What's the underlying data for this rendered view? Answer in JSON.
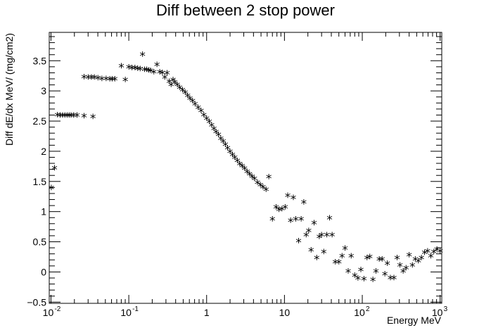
{
  "chart_data": {
    "type": "scatter",
    "title": "Diff between 2 stop power",
    "xlabel": "Energy MeV",
    "ylabel": "Diff dE/dx  MeV/ (mg/cm2)",
    "x_scale": "log",
    "xlim": [
      0.0095,
      1050
    ],
    "ylim": [
      -0.52,
      3.97
    ],
    "grid": false,
    "marker": "*",
    "x_ticks": [
      {
        "value": 0.01,
        "base": "10",
        "exp": "-2"
      },
      {
        "value": 0.1,
        "base": "10",
        "exp": "-1"
      },
      {
        "value": 1,
        "base": "1",
        "exp": ""
      },
      {
        "value": 10,
        "base": "10",
        "exp": ""
      },
      {
        "value": 100,
        "base": "10",
        "exp": "2"
      },
      {
        "value": 1000,
        "base": "10",
        "exp": "3"
      }
    ],
    "y_ticks": [
      {
        "value": -0.5,
        "label": "−0.5"
      },
      {
        "value": 0,
        "label": "0"
      },
      {
        "value": 0.5,
        "label": "0.5"
      },
      {
        "value": 1,
        "label": "1"
      },
      {
        "value": 1.5,
        "label": "1.5"
      },
      {
        "value": 2,
        "label": "2"
      },
      {
        "value": 2.5,
        "label": "2.5"
      },
      {
        "value": 3,
        "label": "3"
      },
      {
        "value": 3.5,
        "label": "3.5"
      }
    ],
    "points": [
      [
        0.0101,
        1.38
      ],
      [
        0.0111,
        1.71
      ],
      [
        0.0121,
        2.59
      ],
      [
        0.0131,
        2.58
      ],
      [
        0.0141,
        2.58
      ],
      [
        0.0151,
        2.58
      ],
      [
        0.0161,
        2.58
      ],
      [
        0.0171,
        2.58
      ],
      [
        0.0181,
        2.58
      ],
      [
        0.0196,
        2.58
      ],
      [
        0.0216,
        2.58
      ],
      [
        0.0266,
        2.57
      ],
      [
        0.0346,
        2.56
      ],
      [
        0.0266,
        3.22
      ],
      [
        0.0301,
        3.21
      ],
      [
        0.0331,
        3.21
      ],
      [
        0.0361,
        3.21
      ],
      [
        0.0401,
        3.2
      ],
      [
        0.0451,
        3.19
      ],
      [
        0.0511,
        3.19
      ],
      [
        0.0571,
        3.18
      ],
      [
        0.0611,
        3.18
      ],
      [
        0.0661,
        3.18
      ],
      [
        0.0801,
        3.4
      ],
      [
        0.0901,
        3.17
      ],
      [
        0.1,
        3.38
      ],
      [
        0.11,
        3.37
      ],
      [
        0.12,
        3.37
      ],
      [
        0.13,
        3.36
      ],
      [
        0.14,
        3.35
      ],
      [
        0.15,
        3.59
      ],
      [
        0.16,
        3.34
      ],
      [
        0.17,
        3.34
      ],
      [
        0.18,
        3.33
      ],
      [
        0.19,
        3.32
      ],
      [
        0.21,
        3.3
      ],
      [
        0.23,
        3.42
      ],
      [
        0.25,
        3.3
      ],
      [
        0.27,
        3.29
      ],
      [
        0.29,
        3.21
      ],
      [
        0.31,
        3.28
      ],
      [
        0.33,
        3.14
      ],
      [
        0.35,
        3.09
      ],
      [
        0.37,
        3.17
      ],
      [
        0.39,
        3.13
      ],
      [
        0.42,
        3.09
      ],
      [
        0.45,
        3.04
      ],
      [
        0.49,
        3.0
      ],
      [
        0.53,
        2.96
      ],
      [
        0.57,
        2.91
      ],
      [
        0.61,
        2.86
      ],
      [
        0.66,
        2.82
      ],
      [
        0.71,
        2.77
      ],
      [
        0.78,
        2.71
      ],
      [
        0.85,
        2.66
      ],
      [
        0.92,
        2.59
      ],
      [
        1.0,
        2.53
      ],
      [
        1.08,
        2.48
      ],
      [
        1.16,
        2.42
      ],
      [
        1.24,
        2.36
      ],
      [
        1.32,
        2.31
      ],
      [
        1.42,
        2.26
      ],
      [
        1.52,
        2.2
      ],
      [
        1.63,
        2.15
      ],
      [
        1.74,
        2.1
      ],
      [
        1.86,
        2.04
      ],
      [
        2.0,
        1.98
      ],
      [
        2.15,
        1.93
      ],
      [
        2.3,
        1.88
      ],
      [
        2.48,
        1.83
      ],
      [
        2.66,
        1.78
      ],
      [
        2.86,
        1.74
      ],
      [
        3.08,
        1.7
      ],
      [
        3.31,
        1.65
      ],
      [
        3.56,
        1.61
      ],
      [
        3.83,
        1.57
      ],
      [
        4.12,
        1.53
      ],
      [
        4.5,
        1.47
      ],
      [
        4.9,
        1.43
      ],
      [
        5.3,
        1.39
      ],
      [
        5.8,
        1.35
      ],
      [
        6.3,
        1.56
      ],
      [
        7.0,
        0.86
      ],
      [
        7.8,
        1.06
      ],
      [
        8.5,
        1.02
      ],
      [
        9.3,
        1.03
      ],
      [
        10.2,
        1.06
      ],
      [
        11.0,
        1.25
      ],
      [
        12.0,
        0.84
      ],
      [
        13.0,
        1.22
      ],
      [
        14.0,
        0.86
      ],
      [
        15.2,
        0.5
      ],
      [
        16.4,
        0.86
      ],
      [
        17.7,
        1.14
      ],
      [
        19.0,
        0.6
      ],
      [
        20.5,
        0.67
      ],
      [
        22.0,
        0.35
      ],
      [
        24.0,
        0.8
      ],
      [
        26.0,
        0.22
      ],
      [
        28.0,
        0.57
      ],
      [
        30.0,
        0.6
      ],
      [
        32.0,
        0.32
      ],
      [
        35.0,
        0.6
      ],
      [
        38.0,
        0.88
      ],
      [
        41.0,
        0.6
      ],
      [
        45.0,
        0.15
      ],
      [
        50.0,
        0.15
      ],
      [
        55.0,
        0.25
      ],
      [
        60.0,
        0.38
      ],
      [
        66.0,
        0.0
      ],
      [
        72.0,
        0.25
      ],
      [
        80.0,
        -0.07
      ],
      [
        88.0,
        -0.12
      ],
      [
        96.0,
        0.02
      ],
      [
        105.0,
        -0.13
      ],
      [
        115.0,
        0.22
      ],
      [
        125.0,
        0.24
      ],
      [
        137.0,
        -0.14
      ],
      [
        150.0,
        0.0
      ],
      [
        165.0,
        0.2
      ],
      [
        180.0,
        0.2
      ],
      [
        195.0,
        -0.05
      ],
      [
        210.0,
        0.13
      ],
      [
        230.0,
        -0.11
      ],
      [
        255.0,
        -0.11
      ],
      [
        280.0,
        0.22
      ],
      [
        305.0,
        0.1
      ],
      [
        335.0,
        0.0
      ],
      [
        365.0,
        0.05
      ],
      [
        400.0,
        0.27
      ],
      [
        440.0,
        0.1
      ],
      [
        480.0,
        0.2
      ],
      [
        525.0,
        0.17
      ],
      [
        575.0,
        0.22
      ],
      [
        630.0,
        0.31
      ],
      [
        690.0,
        0.33
      ],
      [
        760.0,
        0.25
      ],
      [
        830.0,
        0.32
      ],
      [
        910.0,
        0.36
      ],
      [
        1000.0,
        0.33
      ]
    ]
  }
}
